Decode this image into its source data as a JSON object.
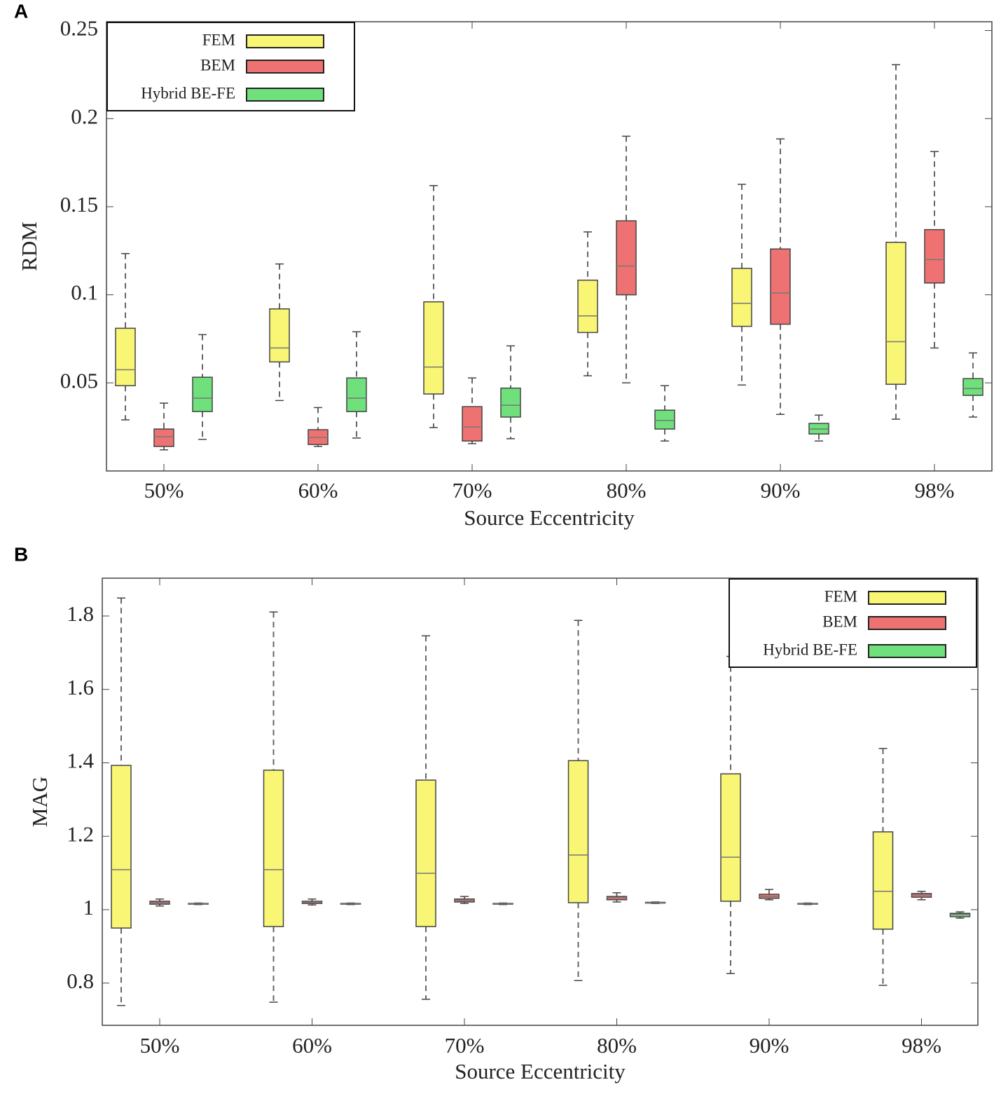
{
  "chart_data": [
    {
      "type": "box",
      "panel": "A",
      "xlabel": "Source Eccentricity",
      "ylabel": "RDM",
      "categories": [
        "50%",
        "60%",
        "70%",
        "80%",
        "90%",
        "98%"
      ],
      "ylim": [
        0,
        0.255
      ],
      "yticks": [
        0.05,
        0.1,
        0.15,
        0.2,
        0.25
      ],
      "legend": "upper left",
      "series": [
        {
          "name": "FEM",
          "color": "#f8f674",
          "whisker_low": [
            0.029,
            0.04,
            0.0246,
            0.054,
            0.0488,
            0.0294
          ],
          "q1": [
            0.0484,
            0.0619,
            0.0437,
            0.0786,
            0.0821,
            0.0492
          ],
          "median": [
            0.0575,
            0.0698,
            0.059,
            0.088,
            0.0952,
            0.0734
          ],
          "q3": [
            0.081,
            0.092,
            0.096,
            0.1083,
            0.115,
            0.1298
          ],
          "whisker_high": [
            0.1234,
            0.1175,
            0.162,
            0.1357,
            0.1627,
            0.2306
          ]
        },
        {
          "name": "BEM",
          "color": "#ef7272",
          "whisker_low": [
            0.012,
            0.0139,
            0.0155,
            0.05,
            0.0321,
            0.0698
          ],
          "q1": [
            0.0139,
            0.015,
            0.017,
            0.1,
            0.0833,
            0.1067
          ],
          "median": [
            0.0194,
            0.019,
            0.025,
            0.1163,
            0.101,
            0.12
          ],
          "q3": [
            0.0238,
            0.0234,
            0.0365,
            0.142,
            0.126,
            0.137
          ],
          "whisker_high": [
            0.0385,
            0.036,
            0.0528,
            0.19,
            0.1885,
            0.1813
          ]
        },
        {
          "name": "Hybrid BE-FE",
          "color": "#6fe07b",
          "whisker_low": [
            0.0179,
            0.0187,
            0.0183,
            0.017,
            0.017,
            0.0306
          ],
          "q1": [
            0.0337,
            0.0337,
            0.0306,
            0.0238,
            0.021,
            0.0429
          ],
          "median": [
            0.0413,
            0.0413,
            0.0373,
            0.0286,
            0.0238,
            0.0468
          ],
          "q3": [
            0.0532,
            0.0528,
            0.047,
            0.0345,
            0.027,
            0.0524
          ],
          "whisker_high": [
            0.0774,
            0.079,
            0.071,
            0.0484,
            0.0317,
            0.067
          ]
        }
      ]
    },
    {
      "type": "box",
      "panel": "B",
      "xlabel": "Source Eccentricity",
      "ylabel": "MAG",
      "categories": [
        "50%",
        "60%",
        "70%",
        "80%",
        "90%",
        "98%"
      ],
      "ylim": [
        0.685,
        1.903
      ],
      "yticks": [
        0.8,
        1,
        1.2,
        1.4,
        1.6,
        1.8
      ],
      "legend": "upper right",
      "series": [
        {
          "name": "FEM",
          "color": "#f8f674",
          "whisker_low": [
            0.739,
            0.748,
            0.756,
            0.807,
            0.826,
            0.794
          ],
          "q1": [
            0.95,
            0.954,
            0.954,
            1.019,
            1.023,
            0.947
          ],
          "median": [
            1.109,
            1.109,
            1.099,
            1.149,
            1.143,
            1.05
          ],
          "q3": [
            1.393,
            1.38,
            1.353,
            1.406,
            1.37,
            1.212
          ],
          "whisker_high": [
            1.849,
            1.811,
            1.746,
            1.788,
            1.69,
            1.439
          ]
        },
        {
          "name": "BEM",
          "color": "#ef7272",
          "whisker_low": [
            1.01,
            1.013,
            1.017,
            1.021,
            1.027,
            1.027
          ],
          "q1": [
            1.015,
            1.017,
            1.021,
            1.027,
            1.031,
            1.034
          ],
          "median": [
            1.019,
            1.021,
            1.025,
            1.032,
            1.036,
            1.04
          ],
          "q3": [
            1.023,
            1.023,
            1.029,
            1.036,
            1.042,
            1.044
          ],
          "whisker_high": [
            1.029,
            1.029,
            1.036,
            1.046,
            1.055,
            1.05
          ]
        },
        {
          "name": "Hybrid BE-FE",
          "color": "#6fe07b",
          "whisker_low": [
            1.014,
            1.014,
            1.014,
            1.017,
            1.014,
            0.977
          ],
          "q1": [
            1.015,
            1.015,
            1.015,
            1.018,
            1.015,
            0.981
          ],
          "median": [
            1.016,
            1.016,
            1.016,
            1.019,
            1.016,
            0.987
          ],
          "q3": [
            1.017,
            1.017,
            1.017,
            1.02,
            1.017,
            0.99
          ],
          "whisker_high": [
            1.018,
            1.018,
            1.018,
            1.021,
            1.018,
            0.994
          ]
        }
      ]
    }
  ]
}
